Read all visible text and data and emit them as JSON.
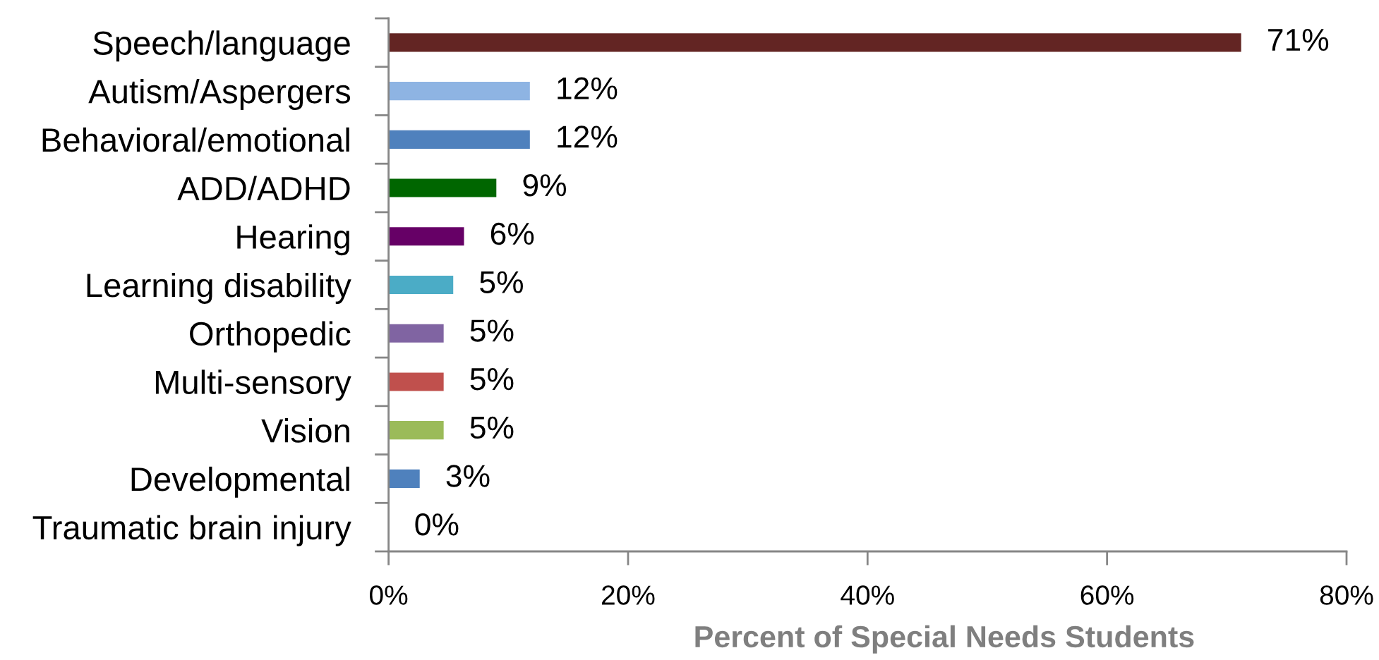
{
  "chart_data": {
    "type": "bar",
    "orientation": "horizontal",
    "categories": [
      "Speech/language",
      "Autism/Aspergers",
      "Behavioral/emotional",
      "ADD/ADHD",
      "Hearing",
      "Learning disability",
      "Orthopedic",
      "Multi-sensory",
      "Vision",
      "Developmental",
      "Traumatic brain injury"
    ],
    "values": [
      71.2,
      11.8,
      11.8,
      9.0,
      6.3,
      5.4,
      4.6,
      4.6,
      4.6,
      2.6,
      0
    ],
    "value_labels": [
      "71%",
      "12%",
      "12%",
      "9%",
      "6%",
      "5%",
      "5%",
      "5%",
      "5%",
      "3%",
      "0%"
    ],
    "colors": [
      "#632523",
      "#8eb4e3",
      "#4f81bd",
      "#006600",
      "#660066",
      "#4bacc6",
      "#8064a2",
      "#c0504d",
      "#9bbb59",
      "#4f81bd",
      "#4f81bd"
    ],
    "xlabel": "Percent of Special Needs Students",
    "xlim": [
      0,
      80
    ],
    "xticks": [
      {
        "value": 0,
        "label": "0%"
      },
      {
        "value": 20,
        "label": "20%"
      },
      {
        "value": 40,
        "label": "40%"
      },
      {
        "value": 60,
        "label": "60%"
      },
      {
        "value": 80,
        "label": "80%"
      }
    ]
  }
}
